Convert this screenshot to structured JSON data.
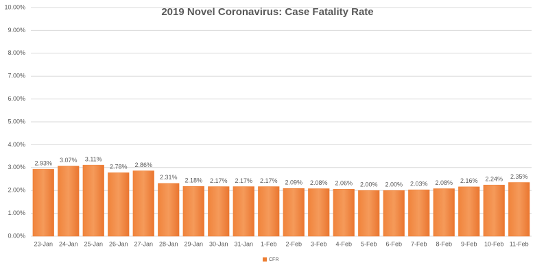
{
  "chart_data": {
    "type": "bar",
    "title": "2019 Novel Coronavirus: Case Fatality Rate",
    "categories": [
      "23-Jan",
      "24-Jan",
      "25-Jan",
      "26-Jan",
      "27-Jan",
      "28-Jan",
      "29-Jan",
      "30-Jan",
      "31-Jan",
      "1-Feb",
      "2-Feb",
      "3-Feb",
      "4-Feb",
      "5-Feb",
      "6-Feb",
      "7-Feb",
      "8-Feb",
      "9-Feb",
      "10-Feb",
      "11-Feb"
    ],
    "series": [
      {
        "name": "CFR",
        "color": "#ed7d31",
        "values": [
          2.93,
          3.07,
          3.11,
          2.78,
          2.86,
          2.31,
          2.18,
          2.17,
          2.17,
          2.17,
          2.09,
          2.08,
          2.06,
          2.0,
          2.0,
          2.03,
          2.08,
          2.16,
          2.24,
          2.35
        ],
        "value_labels": [
          "2.93%",
          "3.07%",
          "3.11%",
          "2.78%",
          "2.86%",
          "2.31%",
          "2.18%",
          "2.17%",
          "2.17%",
          "2.17%",
          "2.09%",
          "2.08%",
          "2.06%",
          "2.00%",
          "2.00%",
          "2.03%",
          "2.08%",
          "2.16%",
          "2.24%",
          "2.35%"
        ]
      }
    ],
    "ylim": [
      0,
      10
    ],
    "yticks": [
      {
        "value": 0,
        "label": "0.00%"
      },
      {
        "value": 1,
        "label": "1.00%"
      },
      {
        "value": 2,
        "label": "2.00%"
      },
      {
        "value": 3,
        "label": "3.00%"
      },
      {
        "value": 4,
        "label": "4.00%"
      },
      {
        "value": 5,
        "label": "5.00%"
      },
      {
        "value": 6,
        "label": "6.00%"
      },
      {
        "value": 7,
        "label": "7.00%"
      },
      {
        "value": 8,
        "label": "8.00%"
      },
      {
        "value": 9,
        "label": "9.00%"
      },
      {
        "value": 10,
        "label": "10.00%"
      }
    ],
    "grid": true,
    "legend": "bottom"
  }
}
